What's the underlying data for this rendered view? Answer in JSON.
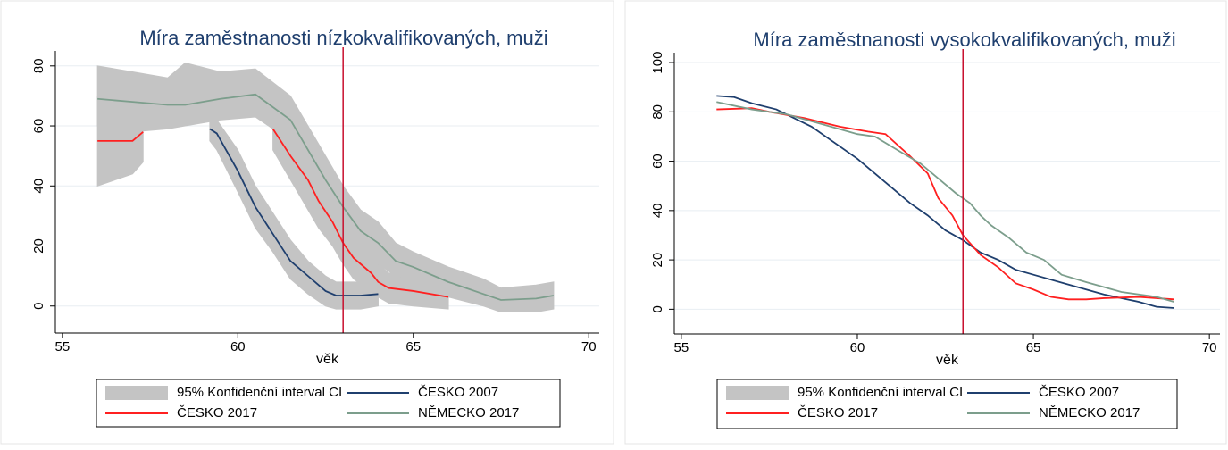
{
  "chart_data": [
    {
      "type": "line",
      "title": "Míra zaměstnanosti nízkokvalifikovaných, muži",
      "x_label": "věk",
      "xlim": [
        54.8,
        70.3
      ],
      "xticks": [
        55,
        60,
        65,
        70
      ],
      "ylim": [
        -9,
        85
      ],
      "yticks": [
        0,
        20,
        40,
        60,
        80
      ],
      "grid": true,
      "vline": 63,
      "vline_color": "#c8102e",
      "ci_legend": "95% Konfidenční interval CI",
      "ci_color": "#c4c4c4",
      "series": [
        {
          "name": "ČESKO 2007",
          "color": "#1f3f6e",
          "x": [
            59.2,
            59.4,
            60,
            60.5,
            61,
            61.5,
            62,
            62.5,
            62.8,
            63.5,
            64
          ],
          "values": [
            59,
            57.5,
            45,
            33,
            24,
            15,
            10,
            5,
            3.5,
            3.5,
            4
          ],
          "ci_lower": [
            55,
            52,
            38,
            26,
            18,
            9,
            4,
            0,
            -1,
            -1,
            0
          ],
          "ci_upper": [
            63,
            62,
            52,
            40,
            31,
            22,
            15,
            10,
            8,
            8,
            8
          ]
        },
        {
          "name": "ČESKO 2017",
          "color": "#ff2020",
          "x": [
            56,
            56.5,
            57,
            57.3,
            59,
            61,
            61.5,
            62,
            62.3,
            62.7,
            63,
            63.3,
            63.8,
            64,
            64.3,
            65,
            66
          ],
          "values": [
            55,
            55,
            55,
            58,
            null,
            59,
            50,
            42,
            35,
            28,
            21,
            16,
            11,
            8,
            6,
            5,
            3
          ],
          "ci_lower": [
            40,
            42,
            44,
            48,
            null,
            52,
            42,
            32,
            26,
            20,
            14,
            9,
            5,
            3,
            1,
            0,
            -1
          ],
          "ci_upper": [
            70,
            72,
            72,
            70,
            null,
            66,
            58,
            50,
            44,
            38,
            30,
            24,
            18,
            14,
            11,
            10,
            8
          ]
        },
        {
          "name": "NĚMECKO 2017",
          "color": "#7c9e8c",
          "x": [
            56,
            57,
            58,
            58.5,
            59.5,
            60.5,
            61.5,
            62,
            62.5,
            63,
            63.5,
            64,
            64.5,
            65,
            66,
            67,
            67.5,
            68.5,
            69
          ],
          "values": [
            69,
            68,
            67,
            67,
            69,
            70.5,
            62,
            52,
            42,
            33,
            25,
            21,
            15,
            13,
            8,
            4,
            2,
            2.5,
            3.5
          ],
          "ci_lower": [
            60,
            58,
            59,
            60,
            62,
            63,
            55,
            45,
            35,
            27,
            19,
            14,
            10,
            8,
            3,
            0,
            -2,
            -2,
            -1
          ],
          "ci_upper": [
            80,
            78,
            76,
            81,
            78,
            79,
            70,
            60,
            50,
            40,
            32,
            28,
            21,
            18,
            13,
            9,
            6,
            7,
            8
          ]
        }
      ]
    },
    {
      "type": "line",
      "title": "Míra zaměstnanosti vysokokvalifikovaných, muži",
      "x_label": "věk",
      "xlim": [
        54.8,
        70.3
      ],
      "xticks": [
        55,
        60,
        65,
        70
      ],
      "ylim": [
        -10,
        104
      ],
      "yticks": [
        0,
        20,
        40,
        60,
        80,
        100
      ],
      "grid": true,
      "vline": 63,
      "vline_color": "#c8102e",
      "ci_legend": "95% Konfidenční interval CI",
      "ci_color": "#c4c4c4",
      "series": [
        {
          "name": "ČESKO 2007",
          "color": "#1f3f6e",
          "x": [
            56,
            56.5,
            57,
            57.7,
            58.7,
            60,
            61,
            61.5,
            62,
            62.5,
            63,
            63.5,
            64,
            64.5,
            65,
            66,
            67,
            68,
            68.5,
            69
          ],
          "values": [
            86.5,
            86,
            83.5,
            81,
            74,
            61,
            49,
            43,
            38,
            32,
            28,
            23,
            20,
            16,
            14,
            10,
            6,
            3,
            1,
            0.5
          ]
        },
        {
          "name": "ČESKO 2017",
          "color": "#ff2020",
          "x": [
            56,
            57,
            57.5,
            58.5,
            59.5,
            60.3,
            60.8,
            61.5,
            62,
            62.3,
            62.7,
            63,
            63.5,
            64,
            64.5,
            65,
            65.5,
            66,
            66.5,
            67,
            68,
            69
          ],
          "values": [
            81,
            81.5,
            80,
            77.5,
            74,
            72,
            71,
            62,
            55,
            45,
            38,
            30,
            22,
            17,
            10.5,
            8,
            5,
            4,
            4,
            4.5,
            5,
            4
          ]
        },
        {
          "name": "NĚMECKO 2017",
          "color": "#7c9e8c",
          "x": [
            56,
            57,
            58,
            59,
            60,
            60.5,
            61.2,
            61.8,
            62.3,
            62.8,
            63.2,
            63.5,
            63.8,
            64.3,
            64.8,
            65.3,
            65.8,
            66.5,
            67,
            67.5,
            68.5,
            69
          ],
          "values": [
            84,
            81,
            79,
            75,
            71,
            70,
            64,
            59,
            53,
            47,
            43,
            38,
            34,
            29,
            23,
            20,
            14,
            11,
            9,
            7,
            5,
            3
          ]
        }
      ]
    }
  ]
}
